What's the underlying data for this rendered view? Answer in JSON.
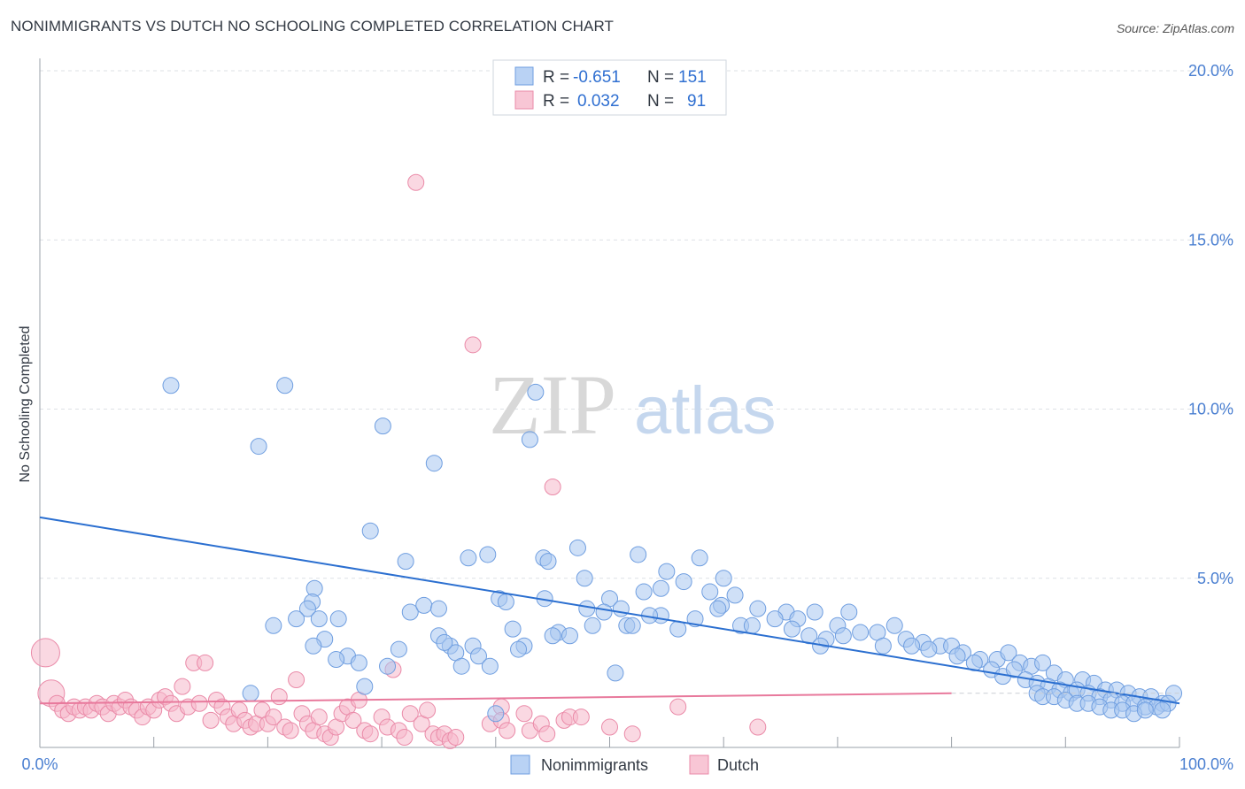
{
  "header": {
    "title": "NONIMMIGRANTS VS DUTCH NO SCHOOLING COMPLETED CORRELATION CHART",
    "source": "Source: ZipAtlas.com"
  },
  "watermark": {
    "zip": "ZIP",
    "atlas": "atlas"
  },
  "legend_box": {
    "rows": [
      {
        "r_label": "R =",
        "r_value": "-0.651",
        "n_label": "N =",
        "n_value": "151",
        "color": "#a8c6f0"
      },
      {
        "r_label": "R =",
        "r_value": "0.032",
        "n_label": "N =",
        "n_value": "91",
        "color": "#f5b8cb"
      }
    ]
  },
  "chart_data": {
    "type": "scatter",
    "title": "NONIMMIGRANTS VS DUTCH NO SCHOOLING COMPLETED CORRELATION CHART",
    "ylabel": "No Schooling Completed",
    "xlabel": "",
    "xlim": [
      0,
      100
    ],
    "ylim": [
      0,
      20
    ],
    "x_tick_labels": [
      "0.0%",
      "100.0%"
    ],
    "y_ticks": [
      5,
      10,
      15,
      20
    ],
    "y_tick_labels": [
      "5.0%",
      "10.0%",
      "15.0%",
      "20.0%"
    ],
    "grid": true,
    "legend_position": "top-center",
    "series": [
      {
        "name": "Nonimmigrants",
        "color": "#a8c6f0",
        "edge": "#6f9ee0",
        "trend_color": "#2b6fd0",
        "trend": {
          "x": [
            0,
            100
          ],
          "y": [
            6.8,
            1.3
          ]
        },
        "points": [
          [
            11.5,
            10.7
          ],
          [
            21.5,
            10.7
          ],
          [
            19.2,
            8.9
          ],
          [
            30.1,
            9.5
          ],
          [
            34.6,
            8.4
          ],
          [
            43.5,
            10.5
          ],
          [
            43.0,
            9.1
          ],
          [
            29.0,
            6.4
          ],
          [
            32.1,
            5.5
          ],
          [
            37.6,
            5.6
          ],
          [
            39.3,
            5.7
          ],
          [
            44.2,
            5.6
          ],
          [
            44.6,
            5.5
          ],
          [
            47.2,
            5.9
          ],
          [
            52.5,
            5.7
          ],
          [
            57.9,
            5.6
          ],
          [
            55.0,
            5.2
          ],
          [
            60.0,
            5.0
          ],
          [
            47.8,
            5.0
          ],
          [
            24.1,
            4.7
          ],
          [
            23.9,
            4.3
          ],
          [
            32.5,
            4.0
          ],
          [
            33.7,
            4.2
          ],
          [
            35.0,
            4.1
          ],
          [
            40.3,
            4.4
          ],
          [
            40.9,
            4.3
          ],
          [
            44.3,
            4.4
          ],
          [
            48.0,
            4.1
          ],
          [
            50.0,
            4.4
          ],
          [
            51.0,
            4.1
          ],
          [
            53.0,
            4.6
          ],
          [
            54.5,
            4.7
          ],
          [
            56.5,
            4.9
          ],
          [
            58.8,
            4.6
          ],
          [
            59.8,
            4.2
          ],
          [
            61.0,
            4.5
          ],
          [
            63.0,
            4.1
          ],
          [
            65.5,
            4.0
          ],
          [
            68.0,
            4.0
          ],
          [
            71.0,
            4.0
          ],
          [
            23.5,
            4.1
          ],
          [
            24.5,
            3.8
          ],
          [
            26.2,
            3.8
          ],
          [
            25.0,
            3.2
          ],
          [
            35.0,
            3.3
          ],
          [
            36.0,
            3.0
          ],
          [
            38.0,
            3.0
          ],
          [
            41.5,
            3.5
          ],
          [
            42.5,
            3.0
          ],
          [
            45.5,
            3.4
          ],
          [
            46.5,
            3.3
          ],
          [
            49.5,
            4.0
          ],
          [
            51.5,
            3.6
          ],
          [
            52.0,
            3.6
          ],
          [
            54.5,
            3.9
          ],
          [
            56.0,
            3.5
          ],
          [
            57.5,
            3.8
          ],
          [
            59.5,
            4.1
          ],
          [
            61.5,
            3.6
          ],
          [
            62.5,
            3.6
          ],
          [
            64.5,
            3.8
          ],
          [
            66.5,
            3.8
          ],
          [
            67.5,
            3.3
          ],
          [
            69.0,
            3.2
          ],
          [
            70.0,
            3.6
          ],
          [
            72.0,
            3.4
          ],
          [
            73.5,
            3.4
          ],
          [
            75.0,
            3.6
          ],
          [
            76.0,
            3.2
          ],
          [
            77.5,
            3.1
          ],
          [
            79.0,
            3.0
          ],
          [
            80.0,
            3.0
          ],
          [
            81.0,
            2.8
          ],
          [
            82.5,
            2.6
          ],
          [
            84.0,
            2.6
          ],
          [
            85.0,
            2.8
          ],
          [
            86.0,
            2.5
          ],
          [
            87.0,
            2.4
          ],
          [
            88.0,
            2.5
          ],
          [
            89.0,
            2.2
          ],
          [
            90.0,
            2.0
          ],
          [
            91.5,
            2.0
          ],
          [
            92.5,
            1.9
          ],
          [
            93.5,
            1.7
          ],
          [
            94.5,
            1.7
          ],
          [
            95.5,
            1.6
          ],
          [
            96.5,
            1.5
          ],
          [
            97.5,
            1.5
          ],
          [
            98.5,
            1.3
          ],
          [
            99.5,
            1.6
          ],
          [
            20.5,
            3.6
          ],
          [
            22.5,
            3.8
          ],
          [
            24.0,
            3.0
          ],
          [
            27.0,
            2.7
          ],
          [
            28.0,
            2.5
          ],
          [
            30.5,
            2.4
          ],
          [
            31.5,
            2.9
          ],
          [
            36.5,
            2.8
          ],
          [
            37.0,
            2.4
          ],
          [
            38.5,
            2.7
          ],
          [
            39.5,
            2.4
          ],
          [
            42.0,
            2.9
          ],
          [
            28.5,
            1.8
          ],
          [
            26.0,
            2.6
          ],
          [
            35.5,
            3.1
          ],
          [
            45.0,
            3.3
          ],
          [
            48.5,
            3.6
          ],
          [
            50.5,
            2.2
          ],
          [
            53.5,
            3.9
          ],
          [
            66.0,
            3.5
          ],
          [
            68.5,
            3.0
          ],
          [
            70.5,
            3.3
          ],
          [
            74.0,
            3.0
          ],
          [
            76.5,
            3.0
          ],
          [
            78.0,
            2.9
          ],
          [
            80.5,
            2.7
          ],
          [
            82.0,
            2.5
          ],
          [
            83.5,
            2.3
          ],
          [
            84.5,
            2.1
          ],
          [
            85.5,
            2.3
          ],
          [
            86.5,
            2.0
          ],
          [
            87.5,
            1.9
          ],
          [
            88.5,
            1.8
          ],
          [
            89.5,
            1.7
          ],
          [
            90.5,
            1.6
          ],
          [
            91.0,
            1.7
          ],
          [
            92.0,
            1.6
          ],
          [
            93.0,
            1.5
          ],
          [
            94.0,
            1.4
          ],
          [
            95.0,
            1.3
          ],
          [
            96.0,
            1.3
          ],
          [
            97.0,
            1.2
          ],
          [
            98.0,
            1.2
          ],
          [
            99.0,
            1.3
          ],
          [
            87.5,
            1.6
          ],
          [
            88.0,
            1.5
          ],
          [
            89.0,
            1.5
          ],
          [
            90.0,
            1.4
          ],
          [
            91.0,
            1.3
          ],
          [
            92.0,
            1.3
          ],
          [
            93.0,
            1.2
          ],
          [
            94.0,
            1.1
          ],
          [
            95.0,
            1.1
          ],
          [
            96.0,
            1.0
          ],
          [
            97.0,
            1.1
          ],
          [
            98.5,
            1.1
          ],
          [
            18.5,
            1.6
          ],
          [
            40.0,
            1.0
          ]
        ]
      },
      {
        "name": "Dutch",
        "color": "#f5b8cb",
        "edge": "#ea8aa8",
        "trend_color": "#e8799c",
        "trend": {
          "x": [
            0,
            80
          ],
          "y": [
            1.3,
            1.6
          ]
        },
        "points": [
          [
            33.0,
            16.7
          ],
          [
            38.0,
            11.9
          ],
          [
            45.0,
            7.7
          ],
          [
            0.5,
            2.8
          ],
          [
            1.0,
            1.6
          ],
          [
            1.5,
            1.3
          ],
          [
            2.0,
            1.1
          ],
          [
            2.5,
            1.0
          ],
          [
            3.0,
            1.2
          ],
          [
            3.5,
            1.1
          ],
          [
            4.0,
            1.2
          ],
          [
            4.5,
            1.1
          ],
          [
            5.0,
            1.3
          ],
          [
            5.5,
            1.2
          ],
          [
            6.0,
            1.0
          ],
          [
            6.5,
            1.3
          ],
          [
            7.0,
            1.2
          ],
          [
            7.5,
            1.4
          ],
          [
            8.0,
            1.2
          ],
          [
            8.5,
            1.1
          ],
          [
            9.0,
            0.9
          ],
          [
            9.5,
            1.2
          ],
          [
            10.0,
            1.1
          ],
          [
            10.5,
            1.4
          ],
          [
            11.0,
            1.5
          ],
          [
            11.5,
            1.3
          ],
          [
            12.0,
            1.0
          ],
          [
            12.5,
            1.8
          ],
          [
            13.0,
            1.2
          ],
          [
            13.5,
            2.5
          ],
          [
            14.0,
            1.3
          ],
          [
            14.5,
            2.5
          ],
          [
            15.0,
            0.8
          ],
          [
            15.5,
            1.4
          ],
          [
            16.0,
            1.2
          ],
          [
            16.5,
            0.9
          ],
          [
            17.0,
            0.7
          ],
          [
            17.5,
            1.1
          ],
          [
            18.0,
            0.8
          ],
          [
            18.5,
            0.6
          ],
          [
            19.0,
            0.7
          ],
          [
            19.5,
            1.1
          ],
          [
            20.0,
            0.7
          ],
          [
            20.5,
            0.9
          ],
          [
            21.0,
            1.5
          ],
          [
            21.5,
            0.6
          ],
          [
            22.0,
            0.5
          ],
          [
            22.5,
            2.0
          ],
          [
            23.0,
            1.0
          ],
          [
            23.5,
            0.7
          ],
          [
            24.0,
            0.5
          ],
          [
            24.5,
            0.9
          ],
          [
            25.0,
            0.4
          ],
          [
            25.5,
            0.3
          ],
          [
            26.0,
            0.6
          ],
          [
            26.5,
            1.0
          ],
          [
            27.0,
            1.2
          ],
          [
            27.5,
            0.8
          ],
          [
            28.0,
            1.4
          ],
          [
            28.5,
            0.5
          ],
          [
            29.0,
            0.4
          ],
          [
            30.0,
            0.9
          ],
          [
            30.5,
            0.6
          ],
          [
            31.0,
            2.3
          ],
          [
            31.5,
            0.5
          ],
          [
            32.0,
            0.3
          ],
          [
            32.5,
            1.0
          ],
          [
            33.5,
            0.7
          ],
          [
            34.0,
            1.1
          ],
          [
            34.5,
            0.4
          ],
          [
            35.0,
            0.3
          ],
          [
            35.5,
            0.4
          ],
          [
            36.0,
            0.2
          ],
          [
            36.5,
            0.3
          ],
          [
            39.5,
            0.7
          ],
          [
            40.5,
            1.2
          ],
          [
            40.5,
            0.8
          ],
          [
            41.0,
            0.5
          ],
          [
            42.5,
            1.0
          ],
          [
            43.0,
            0.5
          ],
          [
            44.0,
            0.7
          ],
          [
            44.5,
            0.4
          ],
          [
            46.0,
            0.8
          ],
          [
            46.5,
            0.9
          ],
          [
            47.5,
            0.9
          ],
          [
            50.0,
            0.6
          ],
          [
            52.0,
            0.4
          ],
          [
            56.0,
            1.2
          ],
          [
            63.0,
            0.6
          ]
        ]
      }
    ]
  },
  "bottom_legend": [
    {
      "label": "Nonimmigrants",
      "color": "#a8c6f0",
      "edge": "#6f9ee0"
    },
    {
      "label": "Dutch",
      "color": "#f5b8cb",
      "edge": "#ea8aa8"
    }
  ]
}
